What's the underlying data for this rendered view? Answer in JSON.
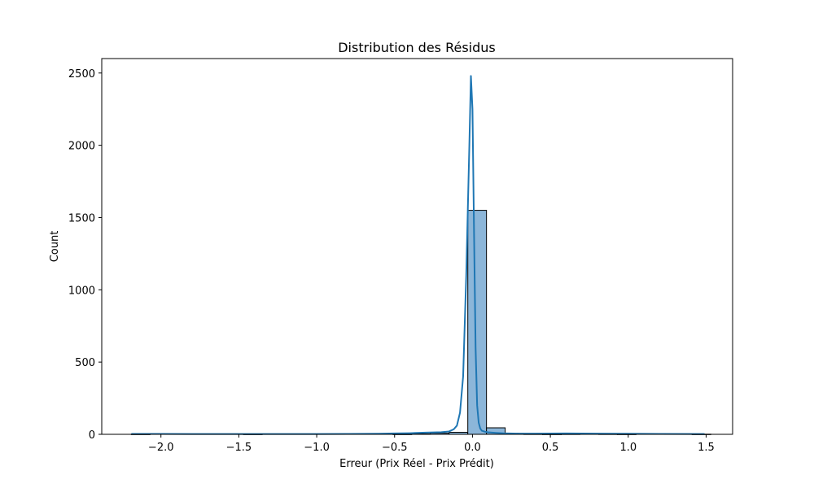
{
  "chart_data": {
    "type": "bar",
    "title": "Distribution des Résidus",
    "xlabel": "Erreur (Prix Réel - Prix Prédit)",
    "ylabel": "Count",
    "xlim": [
      -2.38,
      1.67
    ],
    "ylim": [
      0,
      2600
    ],
    "xticks": [
      -2.0,
      -1.5,
      -1.0,
      -0.5,
      0.0,
      0.5,
      1.0,
      1.5
    ],
    "xtick_labels": [
      "−2.0",
      "−1.5",
      "−1.0",
      "−0.5",
      "0.0",
      "0.5",
      "1.0",
      "1.5"
    ],
    "yticks": [
      0,
      500,
      1000,
      1500,
      2000,
      2500
    ],
    "ytick_labels": [
      "0",
      "500",
      "1000",
      "1500",
      "2000",
      "2500"
    ],
    "grid": false,
    "histogram": {
      "bin_edges": [
        -2.19,
        -2.07,
        -1.95,
        -1.83,
        -1.71,
        -1.59,
        -1.47,
        -1.35,
        -1.23,
        -1.11,
        -0.99,
        -0.87,
        -0.75,
        -0.63,
        -0.51,
        -0.39,
        -0.27,
        -0.15,
        -0.03,
        0.09,
        0.21,
        0.33,
        0.45,
        0.57,
        0.69,
        0.81,
        0.93,
        1.05,
        1.17,
        1.29,
        1.41,
        1.53
      ],
      "counts": [
        1,
        0,
        0,
        0,
        0,
        0,
        1,
        0,
        0,
        0,
        0,
        0,
        0,
        0,
        1,
        3,
        8,
        14,
        1550,
        45,
        6,
        2,
        1,
        2,
        3,
        2,
        1,
        0,
        0,
        0,
        1
      ],
      "bar_color": "#8cb6d9",
      "edge_color": "#000000"
    },
    "kde": {
      "x": [
        -2.19,
        -2.0,
        -1.8,
        -1.6,
        -1.4,
        -1.2,
        -1.0,
        -0.8,
        -0.6,
        -0.5,
        -0.4,
        -0.3,
        -0.2,
        -0.15,
        -0.12,
        -0.1,
        -0.08,
        -0.06,
        -0.04,
        -0.03,
        -0.02,
        -0.01,
        0.0,
        0.01,
        0.02,
        0.03,
        0.04,
        0.05,
        0.06,
        0.08,
        0.1,
        0.15,
        0.2,
        0.3,
        0.4,
        0.6,
        0.8,
        1.0,
        1.2,
        1.49
      ],
      "y": [
        3,
        3,
        2,
        2,
        2,
        2,
        2,
        3,
        4,
        6,
        8,
        12,
        15,
        20,
        35,
        60,
        150,
        400,
        1100,
        1550,
        2000,
        2480,
        2250,
        1400,
        600,
        200,
        80,
        40,
        25,
        18,
        14,
        10,
        7,
        5,
        5,
        6,
        5,
        4,
        3,
        2
      ],
      "color": "#1f77b4"
    }
  }
}
